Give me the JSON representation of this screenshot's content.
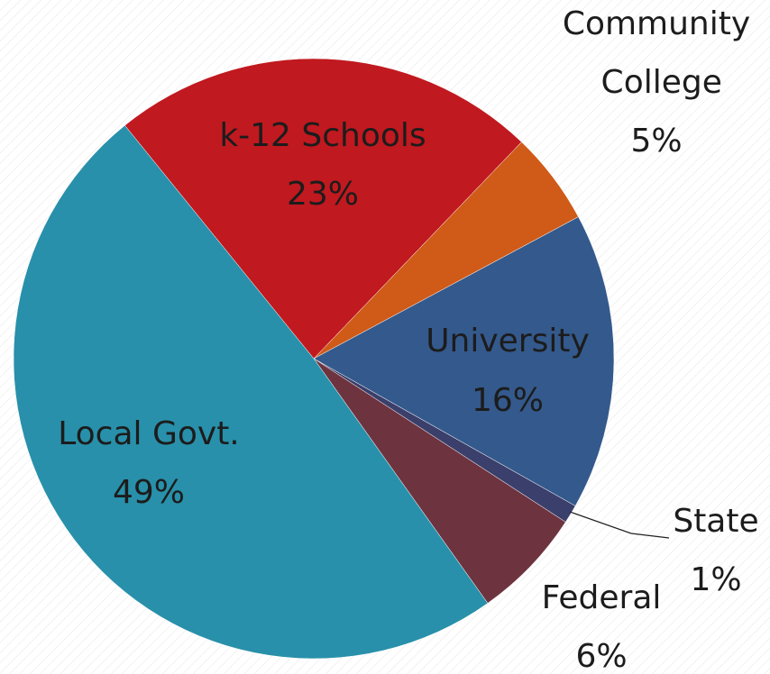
{
  "chart_data": {
    "type": "pie",
    "categories": [
      "k-12 Schools",
      "Community College",
      "University",
      "State",
      "Federal",
      "Local Govt."
    ],
    "values": [
      23,
      5,
      16,
      1,
      6,
      49
    ],
    "value_labels": [
      "23%",
      "5%",
      "16%",
      "1%",
      "6%",
      "49%"
    ],
    "colors": [
      "#c0191f",
      "#d05a17",
      "#34598c",
      "#3b3f6b",
      "#6d3440",
      "#2890aa"
    ]
  }
}
